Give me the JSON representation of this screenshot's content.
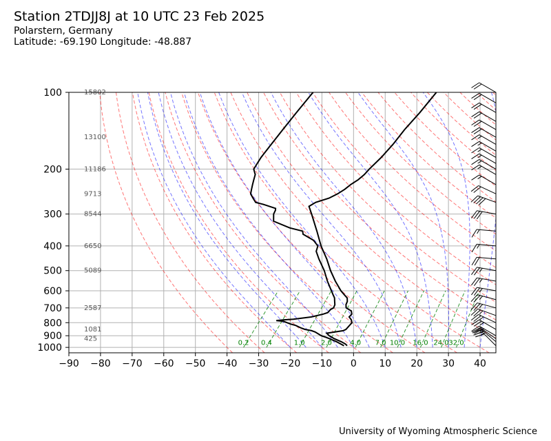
{
  "header": {
    "title": "Station 2TDJJ8J at 10 UTC 23 Feb 2025",
    "location": "Polarstern, Germany",
    "coords": "Latitude: -69.190 Longitude: -48.887"
  },
  "footer": {
    "credit": "University of Wyoming Atmospheric Science"
  },
  "chart_data": {
    "type": "skew-t log-p",
    "x_ticks": [
      -90,
      -80,
      -70,
      -60,
      -50,
      -40,
      -30,
      -20,
      -10,
      0,
      10,
      20,
      30,
      40
    ],
    "xlim": [
      -90,
      45
    ],
    "p_ticks": [
      100,
      200,
      300,
      400,
      500,
      600,
      700,
      800,
      900,
      1000
    ],
    "plim": [
      1050,
      100
    ],
    "grid": true,
    "height_labels": [
      {
        "p": 100,
        "h": "15802"
      },
      {
        "p": 150,
        "h": "13100"
      },
      {
        "p": 200,
        "h": "11186"
      },
      {
        "p": 250,
        "h": "9713"
      },
      {
        "p": 300,
        "h": "8544"
      },
      {
        "p": 400,
        "h": "6650"
      },
      {
        "p": 500,
        "h": "5089"
      },
      {
        "p": 700,
        "h": "2587"
      },
      {
        "p": 850,
        "h": "1081"
      },
      {
        "p": 925,
        "h": "425"
      }
    ],
    "mixing_ratio_labels": [
      "0.2",
      "0.4",
      "1.0",
      "2.0",
      "4.0",
      "7.0",
      "10.0",
      "16.0",
      "24.0",
      "32.0"
    ],
    "mixing_ratio_values": [
      0.2,
      0.4,
      1,
      2,
      4,
      7,
      10,
      16,
      24,
      32
    ],
    "temperature": [
      [
        985,
        -2.5
      ],
      [
        970,
        -3.5
      ],
      [
        950,
        -5.5
      ],
      [
        925,
        -8.5
      ],
      [
        900,
        -11
      ],
      [
        880,
        -12.5
      ],
      [
        860,
        -8
      ],
      [
        850,
        -7.5
      ],
      [
        800,
        -7.5
      ],
      [
        780,
        -8.5
      ],
      [
        760,
        -10
      ],
      [
        740,
        -10
      ],
      [
        720,
        -11
      ],
      [
        700,
        -13.5
      ],
      [
        680,
        -14.5
      ],
      [
        660,
        -15
      ],
      [
        640,
        -16
      ],
      [
        620,
        -18
      ],
      [
        600,
        -20
      ],
      [
        550,
        -24.5
      ],
      [
        500,
        -29
      ],
      [
        450,
        -33.5
      ],
      [
        400,
        -39
      ],
      [
        350,
        -44.5
      ],
      [
        300,
        -51
      ],
      [
        280,
        -54
      ],
      [
        270,
        -53
      ],
      [
        260,
        -50
      ],
      [
        250,
        -48.5
      ],
      [
        240,
        -47.5
      ],
      [
        230,
        -47
      ],
      [
        220,
        -46
      ],
      [
        210,
        -45.5
      ],
      [
        200,
        -45.5
      ],
      [
        180,
        -45
      ],
      [
        160,
        -45
      ],
      [
        140,
        -45.5
      ],
      [
        120,
        -45.5
      ],
      [
        100,
        -46
      ]
    ],
    "dewpoint": [
      [
        985,
        -3.5
      ],
      [
        970,
        -5
      ],
      [
        950,
        -7
      ],
      [
        925,
        -10
      ],
      [
        910,
        -12
      ],
      [
        900,
        -13.5
      ],
      [
        890,
        -14.5
      ],
      [
        870,
        -16.5
      ],
      [
        860,
        -18
      ],
      [
        850,
        -20.5
      ],
      [
        840,
        -22
      ],
      [
        820,
        -24.5
      ],
      [
        810,
        -26.5
      ],
      [
        800,
        -28
      ],
      [
        790,
        -29.5
      ],
      [
        785,
        -32
      ],
      [
        780,
        -30
      ],
      [
        775,
        -27
      ],
      [
        760,
        -22
      ],
      [
        740,
        -19
      ],
      [
        730,
        -18
      ],
      [
        720,
        -18
      ],
      [
        710,
        -18
      ],
      [
        700,
        -17.5
      ],
      [
        680,
        -18
      ],
      [
        660,
        -19
      ],
      [
        640,
        -20
      ],
      [
        620,
        -21.5
      ],
      [
        600,
        -23
      ],
      [
        550,
        -27
      ],
      [
        500,
        -31
      ],
      [
        450,
        -36
      ],
      [
        420,
        -39
      ],
      [
        400,
        -40
      ],
      [
        380,
        -43
      ],
      [
        370,
        -45.5
      ],
      [
        360,
        -48
      ],
      [
        350,
        -49
      ],
      [
        340,
        -54
      ],
      [
        320,
        -61
      ],
      [
        300,
        -63
      ],
      [
        290,
        -63.5
      ],
      [
        285,
        -64
      ],
      [
        275,
        -69
      ],
      [
        270,
        -72
      ],
      [
        260,
        -74
      ],
      [
        250,
        -76
      ],
      [
        240,
        -77
      ],
      [
        230,
        -78
      ],
      [
        220,
        -79
      ],
      [
        210,
        -80
      ],
      [
        200,
        -82
      ],
      [
        180,
        -83
      ],
      [
        160,
        -83.5
      ],
      [
        140,
        -84
      ],
      [
        120,
        -84.5
      ],
      [
        100,
        -85
      ]
    ],
    "wind_barbs": [
      {
        "p": 985,
        "dir": 315,
        "kt": 20
      },
      {
        "p": 950,
        "dir": 310,
        "kt": 25
      },
      {
        "p": 925,
        "dir": 305,
        "kt": 25
      },
      {
        "p": 900,
        "dir": 300,
        "kt": 25
      },
      {
        "p": 850,
        "dir": 300,
        "kt": 25
      },
      {
        "p": 800,
        "dir": 295,
        "kt": 25
      },
      {
        "p": 750,
        "dir": 290,
        "kt": 25
      },
      {
        "p": 700,
        "dir": 285,
        "kt": 25
      },
      {
        "p": 650,
        "dir": 285,
        "kt": 25
      },
      {
        "p": 600,
        "dir": 280,
        "kt": 25
      },
      {
        "p": 550,
        "dir": 280,
        "kt": 25
      },
      {
        "p": 500,
        "dir": 280,
        "kt": 25
      },
      {
        "p": 450,
        "dir": 275,
        "kt": 20
      },
      {
        "p": 400,
        "dir": 275,
        "kt": 15
      },
      {
        "p": 350,
        "dir": 275,
        "kt": 15
      },
      {
        "p": 300,
        "dir": 280,
        "kt": 30
      },
      {
        "p": 270,
        "dir": 290,
        "kt": 40
      },
      {
        "p": 250,
        "dir": 295,
        "kt": 20
      },
      {
        "p": 230,
        "dir": 300,
        "kt": 15
      },
      {
        "p": 210,
        "dir": 300,
        "kt": 15
      },
      {
        "p": 200,
        "dir": 300,
        "kt": 15
      },
      {
        "p": 190,
        "dir": 300,
        "kt": 15
      },
      {
        "p": 180,
        "dir": 300,
        "kt": 15
      },
      {
        "p": 170,
        "dir": 300,
        "kt": 15
      },
      {
        "p": 160,
        "dir": 300,
        "kt": 15
      },
      {
        "p": 150,
        "dir": 300,
        "kt": 20
      },
      {
        "p": 140,
        "dir": 300,
        "kt": 20
      },
      {
        "p": 130,
        "dir": 300,
        "kt": 20
      },
      {
        "p": 120,
        "dir": 300,
        "kt": 20
      },
      {
        "p": 110,
        "dir": 300,
        "kt": 20
      },
      {
        "p": 100,
        "dir": 300,
        "kt": 20
      }
    ],
    "colors": {
      "temperature": "#000000",
      "dewpoint": "#000000",
      "isotherm_grid": "#b0b0b0",
      "dry_adiabat": "#ff0000",
      "moist_adiabat": "#0000ff",
      "mixing_ratio": "#008000"
    }
  }
}
